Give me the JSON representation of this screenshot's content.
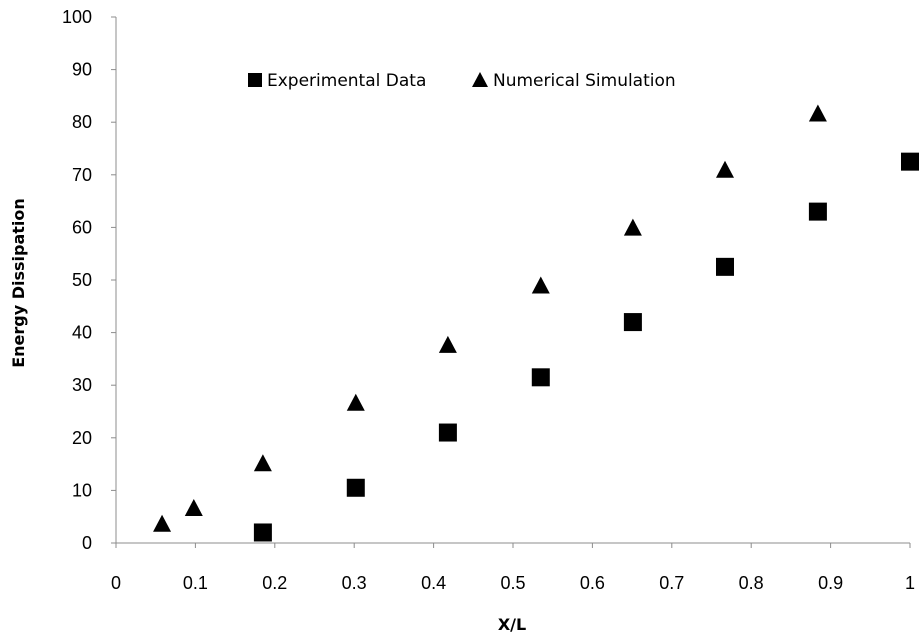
{
  "chart_data": {
    "type": "scatter",
    "title": "",
    "xlabel": "X/L",
    "ylabel": "Energy Dissipation",
    "xlim": [
      0,
      1
    ],
    "ylim": [
      0,
      100
    ],
    "x_ticks": [
      "0",
      "0.1",
      "0.2",
      "0.3",
      "0.4",
      "0.5",
      "0.6",
      "0.7",
      "0.8",
      "0.9",
      "1"
    ],
    "y_ticks": [
      "0",
      "10",
      "20",
      "30",
      "40",
      "50",
      "60",
      "70",
      "80",
      "90",
      "100"
    ],
    "grid": false,
    "legend_position": "top",
    "series": [
      {
        "name": "Experimental Data",
        "marker": "square",
        "color": "#000000",
        "points": [
          {
            "x": 0.185,
            "y": 2
          },
          {
            "x": 0.302,
            "y": 10.5
          },
          {
            "x": 0.418,
            "y": 21
          },
          {
            "x": 0.535,
            "y": 31.5
          },
          {
            "x": 0.651,
            "y": 42
          },
          {
            "x": 0.767,
            "y": 52.5
          },
          {
            "x": 0.884,
            "y": 63
          },
          {
            "x": 1.0,
            "y": 72.5
          }
        ]
      },
      {
        "name": "Numerical Simulation",
        "marker": "triangle",
        "color": "#000000",
        "points": [
          {
            "x": 0.058,
            "y": 3.5
          },
          {
            "x": 0.098,
            "y": 6.5
          },
          {
            "x": 0.185,
            "y": 15
          },
          {
            "x": 0.302,
            "y": 26.5
          },
          {
            "x": 0.418,
            "y": 37.5
          },
          {
            "x": 0.535,
            "y": 48.8
          },
          {
            "x": 0.651,
            "y": 59.8
          },
          {
            "x": 0.767,
            "y": 70.8
          },
          {
            "x": 0.884,
            "y": 81.5
          }
        ]
      }
    ]
  }
}
